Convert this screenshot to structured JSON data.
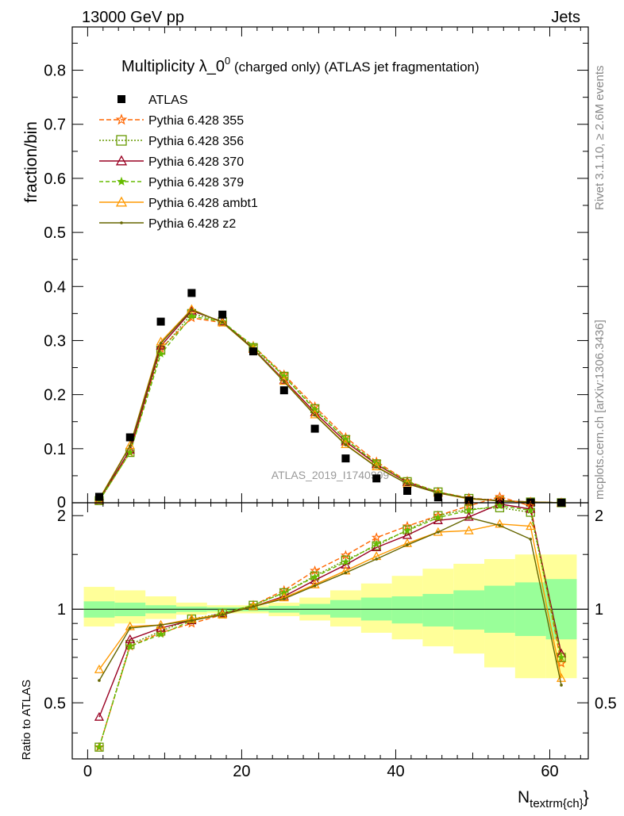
{
  "header": {
    "left": "13000 GeV pp",
    "right": "Jets"
  },
  "side_labels": {
    "rivet": "Rivet 3.1.10, ≥ 2.6M events",
    "mcplots": "mcplots.cern.ch [arXiv:1306.3436]"
  },
  "chart_data": [
    {
      "type": "line",
      "title": "Multiplicity λ_0",
      "title_sup": "0",
      "title_suffix": " (charged only) (ATLAS jet fragmentation)",
      "xlabel": "N",
      "xlabel_sub": "textrm{ch}",
      "xlabel_close": "}",
      "ylabel": "fraction/bin",
      "watermark": "ATLAS_2019_I1740909",
      "xlim": [
        -2,
        65
      ],
      "ylim": [
        0,
        0.88
      ],
      "x_ticks": [
        0,
        20,
        40,
        60
      ],
      "y_ticks": [
        0.1,
        0.2,
        0.3,
        0.4,
        0.5,
        0.6,
        0.7,
        0.8
      ],
      "y_tick_labels": [
        "0.1",
        "0.2",
        "0.3",
        "0.4",
        "0.5",
        "0.6",
        "0.7",
        "0.8"
      ],
      "y_zero_label": "0",
      "x": [
        1.5,
        5.5,
        9.5,
        13.5,
        17.5,
        21.5,
        25.5,
        29.5,
        33.5,
        37.5,
        41.5,
        45.5,
        49.5,
        53.5,
        57.5,
        61.5
      ],
      "data": {
        "name": "ATLAS",
        "values": [
          0.011,
          0.121,
          0.335,
          0.388,
          0.348,
          0.28,
          0.208,
          0.137,
          0.082,
          0.045,
          0.022,
          0.01,
          0.004,
          0.0018,
          0.0007,
          0.0002
        ]
      },
      "series": [
        {
          "name": "Pythia 6.428 355",
          "color": "#ff6600",
          "dash": "6,3",
          "marker": "star",
          "values": [
            0.004,
            0.093,
            0.285,
            0.342,
            0.333,
            0.29,
            0.237,
            0.178,
            0.121,
            0.076,
            0.04,
            0.02,
            0.009,
            0.004,
            0.0015,
            0.0001
          ]
        },
        {
          "name": "Pythia 6.428 356",
          "color": "#669900",
          "dash": "2,2",
          "marker": "square",
          "values": [
            0.004,
            0.093,
            0.282,
            0.35,
            0.335,
            0.287,
            0.234,
            0.174,
            0.117,
            0.072,
            0.039,
            0.02,
            0.008,
            0.0038,
            0.0014,
            0.0001
          ]
        },
        {
          "name": "Pythia 6.428 370",
          "color": "#990022",
          "dash": "",
          "marker": "triangle",
          "values": [
            0.005,
            0.098,
            0.29,
            0.355,
            0.335,
            0.285,
            0.227,
            0.167,
            0.113,
            0.071,
            0.038,
            0.019,
            0.008,
            0.0039,
            0.0015,
            0.0001
          ]
        },
        {
          "name": "Pythia 6.428 379",
          "color": "#66bb00",
          "dash": "5,3",
          "marker": "smallstar",
          "values": [
            0.004,
            0.093,
            0.275,
            0.345,
            0.335,
            0.29,
            0.234,
            0.172,
            0.117,
            0.073,
            0.039,
            0.02,
            0.008,
            0.0038,
            0.0014,
            0.0001
          ]
        },
        {
          "name": "Pythia 6.428 ambt1",
          "color": "#ff9900",
          "dash": "",
          "marker": "triangle",
          "values": [
            0.007,
            0.106,
            0.298,
            0.358,
            0.333,
            0.284,
            0.225,
            0.163,
            0.108,
            0.067,
            0.035,
            0.018,
            0.007,
            0.0034,
            0.0013,
            0.0001
          ]
        },
        {
          "name": "Pythia 6.428 z2",
          "color": "#666600",
          "dash": "",
          "marker": "dot",
          "values": [
            0.006,
            0.105,
            0.295,
            0.357,
            0.334,
            0.284,
            0.224,
            0.162,
            0.107,
            0.066,
            0.035,
            0.018,
            0.008,
            0.0034,
            0.0012,
            0.0001
          ]
        }
      ]
    },
    {
      "type": "line",
      "ylabel": "Ratio to ATLAS",
      "ylim": [
        0.33,
        2.2
      ],
      "y_scale": "log",
      "y_ticks": [
        0.5,
        1,
        2
      ],
      "y_tick_labels": [
        "0.5",
        "1",
        "2"
      ],
      "band_inner": [
        [
          0.94,
          1.06
        ],
        [
          0.95,
          1.05
        ],
        [
          0.97,
          1.03
        ],
        [
          0.98,
          1.02
        ],
        [
          0.985,
          1.015
        ],
        [
          0.985,
          1.015
        ],
        [
          0.975,
          1.025
        ],
        [
          0.96,
          1.04
        ],
        [
          0.94,
          1.07
        ],
        [
          0.92,
          1.09
        ],
        [
          0.9,
          1.1
        ],
        [
          0.88,
          1.12
        ],
        [
          0.86,
          1.15
        ],
        [
          0.84,
          1.19
        ],
        [
          0.82,
          1.22
        ],
        [
          0.8,
          1.25
        ]
      ],
      "band_outer": [
        [
          0.88,
          1.18
        ],
        [
          0.9,
          1.15
        ],
        [
          0.93,
          1.1
        ],
        [
          0.96,
          1.05
        ],
        [
          0.97,
          1.03
        ],
        [
          0.97,
          1.03
        ],
        [
          0.95,
          1.05
        ],
        [
          0.92,
          1.09
        ],
        [
          0.88,
          1.15
        ],
        [
          0.84,
          1.21
        ],
        [
          0.8,
          1.28
        ],
        [
          0.76,
          1.35
        ],
        [
          0.72,
          1.4
        ],
        [
          0.65,
          1.45
        ],
        [
          0.6,
          1.5
        ],
        [
          0.6,
          1.5
        ]
      ],
      "series": [
        {
          "name": "Pythia 6.428 355",
          "values": [
            0.36,
            0.76,
            0.84,
            0.9,
            0.96,
            1.03,
            1.15,
            1.33,
            1.49,
            1.7,
            1.85,
            2.0,
            2.15,
            2.3,
            2.15,
            0.67
          ]
        },
        {
          "name": "Pythia 6.428 356",
          "values": [
            0.36,
            0.77,
            0.85,
            0.93,
            0.97,
            1.03,
            1.13,
            1.28,
            1.44,
            1.6,
            1.8,
            2.0,
            2.1,
            2.12,
            2.05,
            0.7
          ]
        },
        {
          "name": "Pythia 6.428 370",
          "values": [
            0.45,
            0.8,
            0.87,
            0.92,
            0.97,
            1.02,
            1.1,
            1.24,
            1.39,
            1.58,
            1.73,
            1.93,
            1.98,
            2.18,
            2.1,
            0.72
          ]
        },
        {
          "name": "Pythia 6.428 379",
          "values": [
            0.36,
            0.76,
            0.83,
            0.92,
            0.97,
            1.03,
            1.13,
            1.27,
            1.42,
            1.62,
            1.79,
            1.97,
            2.08,
            2.15,
            2.08,
            0.7
          ]
        },
        {
          "name": "Pythia 6.428 ambt1",
          "values": [
            0.64,
            0.88,
            0.89,
            0.93,
            0.96,
            1.02,
            1.09,
            1.2,
            1.33,
            1.48,
            1.63,
            1.77,
            1.79,
            1.88,
            1.85,
            0.6
          ]
        },
        {
          "name": "Pythia 6.428 z2",
          "values": [
            0.59,
            0.87,
            0.89,
            0.92,
            0.96,
            1.02,
            1.08,
            1.19,
            1.31,
            1.45,
            1.61,
            1.77,
            1.97,
            1.86,
            1.68,
            0.57
          ]
        }
      ]
    }
  ]
}
